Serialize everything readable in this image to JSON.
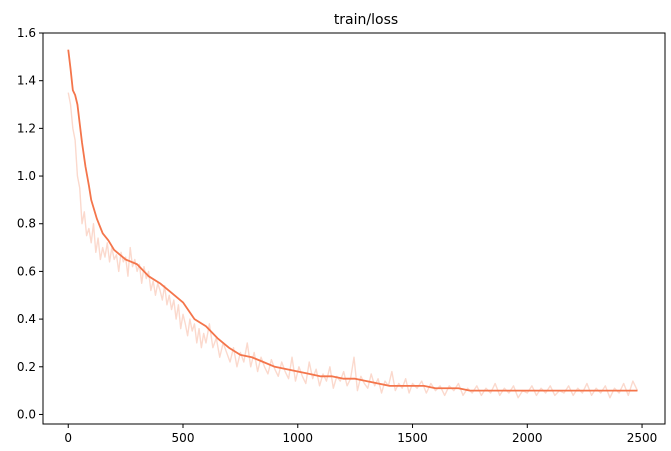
{
  "chart_data": {
    "type": "line",
    "title": "train/loss",
    "xlabel": "",
    "ylabel": "",
    "xlim": [
      -110,
      2600
    ],
    "ylim": [
      -0.04,
      1.6
    ],
    "x_ticks": [
      0,
      500,
      1000,
      1500,
      2000,
      2500
    ],
    "x_tick_labels": [
      "0",
      "500",
      "1000",
      "1500",
      "2000",
      "2500"
    ],
    "y_ticks": [
      0.0,
      0.2,
      0.4,
      0.6,
      0.8,
      1.0,
      1.2,
      1.4,
      1.6
    ],
    "y_tick_labels": [
      "0.0",
      "0.2",
      "0.4",
      "0.6",
      "0.8",
      "1.0",
      "1.2",
      "1.4",
      "1.6"
    ],
    "grid": false,
    "legend": "none",
    "colors": {
      "smoothed": "#f4754b",
      "raw": "#fbd9cd"
    },
    "series": [
      {
        "role": "smoothed",
        "x": [
          0,
          10,
          20,
          30,
          40,
          50,
          60,
          75,
          90,
          100,
          125,
          150,
          175,
          200,
          250,
          300,
          350,
          400,
          450,
          500,
          550,
          600,
          650,
          700,
          750,
          800,
          850,
          900,
          950,
          1000,
          1050,
          1100,
          1150,
          1200,
          1250,
          1300,
          1350,
          1400,
          1450,
          1500,
          1550,
          1600,
          1650,
          1700,
          1750,
          1800,
          1850,
          1900,
          1950,
          2000,
          2050,
          2100,
          2150,
          2200,
          2250,
          2300,
          2350,
          2400,
          2450,
          2480
        ],
        "y": [
          1.53,
          1.45,
          1.36,
          1.34,
          1.3,
          1.22,
          1.14,
          1.04,
          0.96,
          0.9,
          0.82,
          0.76,
          0.73,
          0.69,
          0.65,
          0.63,
          0.58,
          0.55,
          0.51,
          0.47,
          0.4,
          0.37,
          0.32,
          0.28,
          0.25,
          0.24,
          0.22,
          0.2,
          0.19,
          0.18,
          0.17,
          0.16,
          0.16,
          0.15,
          0.15,
          0.14,
          0.13,
          0.12,
          0.12,
          0.12,
          0.12,
          0.11,
          0.11,
          0.11,
          0.1,
          0.1,
          0.1,
          0.1,
          0.1,
          0.1,
          0.1,
          0.1,
          0.1,
          0.1,
          0.1,
          0.1,
          0.1,
          0.1,
          0.1,
          0.1
        ]
      },
      {
        "role": "raw",
        "x": [
          0,
          10,
          20,
          30,
          40,
          50,
          60,
          70,
          80,
          90,
          100,
          110,
          120,
          130,
          140,
          150,
          160,
          170,
          180,
          190,
          200,
          210,
          220,
          230,
          240,
          250,
          260,
          270,
          280,
          290,
          300,
          310,
          320,
          330,
          340,
          350,
          360,
          370,
          380,
          390,
          400,
          410,
          420,
          430,
          440,
          450,
          460,
          470,
          480,
          490,
          500,
          510,
          520,
          530,
          540,
          550,
          560,
          570,
          580,
          590,
          600,
          615,
          630,
          645,
          660,
          675,
          690,
          705,
          720,
          735,
          750,
          765,
          780,
          795,
          810,
          825,
          840,
          855,
          870,
          885,
          900,
          915,
          930,
          945,
          960,
          975,
          990,
          1005,
          1020,
          1035,
          1050,
          1065,
          1080,
          1095,
          1110,
          1125,
          1140,
          1155,
          1170,
          1185,
          1200,
          1215,
          1230,
          1245,
          1260,
          1275,
          1290,
          1305,
          1320,
          1335,
          1350,
          1365,
          1380,
          1395,
          1410,
          1425,
          1440,
          1455,
          1470,
          1485,
          1500,
          1520,
          1540,
          1560,
          1580,
          1600,
          1620,
          1640,
          1660,
          1680,
          1700,
          1720,
          1740,
          1760,
          1780,
          1800,
          1820,
          1840,
          1860,
          1880,
          1900,
          1920,
          1940,
          1960,
          1980,
          2000,
          2020,
          2040,
          2060,
          2080,
          2100,
          2120,
          2140,
          2160,
          2180,
          2200,
          2220,
          2240,
          2260,
          2280,
          2300,
          2320,
          2340,
          2360,
          2380,
          2400,
          2420,
          2440,
          2460,
          2480
        ],
        "y": [
          1.35,
          1.3,
          1.2,
          1.15,
          1.0,
          0.95,
          0.8,
          0.85,
          0.75,
          0.78,
          0.72,
          0.8,
          0.68,
          0.74,
          0.65,
          0.7,
          0.66,
          0.72,
          0.64,
          0.7,
          0.65,
          0.67,
          0.6,
          0.68,
          0.64,
          0.66,
          0.58,
          0.7,
          0.62,
          0.65,
          0.6,
          0.63,
          0.55,
          0.62,
          0.57,
          0.6,
          0.52,
          0.56,
          0.5,
          0.55,
          0.52,
          0.48,
          0.54,
          0.46,
          0.5,
          0.44,
          0.48,
          0.4,
          0.46,
          0.36,
          0.42,
          0.38,
          0.33,
          0.4,
          0.35,
          0.38,
          0.3,
          0.36,
          0.28,
          0.34,
          0.3,
          0.38,
          0.28,
          0.32,
          0.24,
          0.3,
          0.26,
          0.22,
          0.28,
          0.2,
          0.26,
          0.22,
          0.3,
          0.2,
          0.26,
          0.18,
          0.24,
          0.2,
          0.17,
          0.23,
          0.19,
          0.16,
          0.22,
          0.18,
          0.15,
          0.24,
          0.14,
          0.2,
          0.16,
          0.13,
          0.22,
          0.15,
          0.19,
          0.12,
          0.17,
          0.14,
          0.2,
          0.11,
          0.16,
          0.14,
          0.18,
          0.12,
          0.15,
          0.24,
          0.1,
          0.16,
          0.13,
          0.11,
          0.17,
          0.12,
          0.15,
          0.09,
          0.14,
          0.12,
          0.18,
          0.1,
          0.13,
          0.11,
          0.15,
          0.09,
          0.13,
          0.11,
          0.14,
          0.09,
          0.13,
          0.1,
          0.12,
          0.08,
          0.12,
          0.1,
          0.13,
          0.08,
          0.11,
          0.09,
          0.12,
          0.08,
          0.11,
          0.09,
          0.13,
          0.08,
          0.11,
          0.09,
          0.12,
          0.07,
          0.1,
          0.09,
          0.12,
          0.08,
          0.11,
          0.09,
          0.12,
          0.08,
          0.1,
          0.09,
          0.12,
          0.08,
          0.11,
          0.09,
          0.13,
          0.08,
          0.11,
          0.09,
          0.12,
          0.07,
          0.11,
          0.09,
          0.13,
          0.08,
          0.14,
          0.1
        ]
      }
    ]
  }
}
